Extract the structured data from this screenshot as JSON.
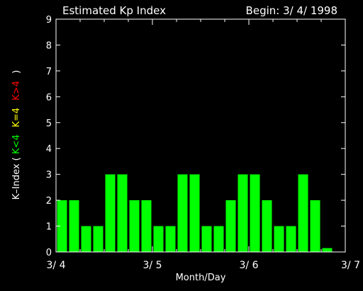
{
  "chart_data": {
    "type": "bar",
    "title": "Estimated Kp Index",
    "begin_label": "Begin: 3/ 4/ 1998",
    "xlabel": "Month/Day",
    "ylabel_prefix": "K–Index (",
    "ylabel_low": "K<4",
    "ylabel_mid": "K=4",
    "ylabel_high": "K>4",
    "ylabel_suffix": ")",
    "ylim": [
      0,
      9
    ],
    "yticks": [
      "0",
      "1",
      "2",
      "3",
      "4",
      "5",
      "6",
      "7",
      "8",
      "9"
    ],
    "xlim": [
      0,
      24
    ],
    "xticks": [
      {
        "pos": 0,
        "label": "3/ 4"
      },
      {
        "pos": 8,
        "label": "3/ 5"
      },
      {
        "pos": 16,
        "label": "3/ 6"
      },
      {
        "pos": 24,
        "label": "3/ 7"
      }
    ],
    "values": [
      2,
      2,
      1,
      1,
      3,
      3,
      2,
      2,
      1,
      1,
      3,
      3,
      1,
      1,
      2,
      3,
      3,
      2,
      1,
      1,
      3,
      2,
      0.15,
      0
    ],
    "colors": {
      "low": "#00ff00",
      "mid": "#ffff00",
      "high": "#ff0000",
      "text": "#ffffff",
      "background": "#000000"
    },
    "grid": false
  }
}
